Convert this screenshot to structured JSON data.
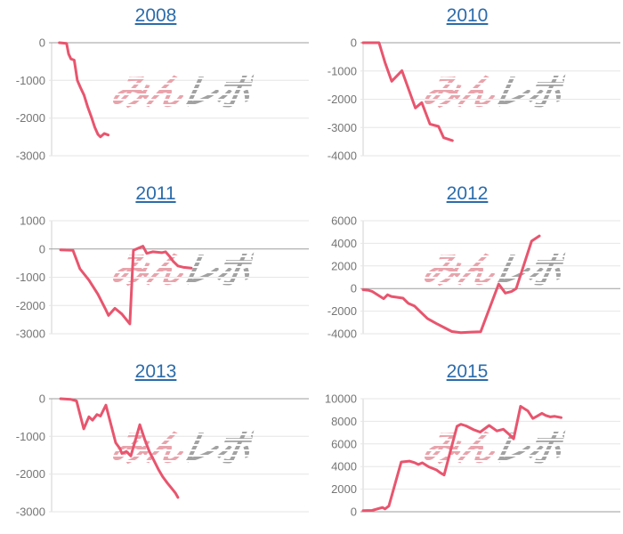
{
  "watermark": {
    "pink": "みん",
    "gray": "レポ"
  },
  "colors": {
    "line": "#e8556e",
    "title_link": "#2b6cab",
    "axis_label": "#757575",
    "gridline": "#e6e6e6",
    "zero_line": "#9e9e9e",
    "axis_line": "#d2d2d2",
    "background": "#ffffff",
    "watermark_pink": "#e9a3ab",
    "watermark_gray": "#a2a2a2"
  },
  "chart_data": [
    {
      "type": "line",
      "title": "2008",
      "ylim": [
        -3000,
        0
      ],
      "yticks": [
        0,
        -1000,
        -2000,
        -3000
      ],
      "grid": true,
      "legend": "none",
      "x_unit": "fraction-of-plot-width",
      "series": [
        {
          "name": "2008",
          "points": [
            [
              0.03,
              0
            ],
            [
              0.058,
              -20
            ],
            [
              0.066,
              -300
            ],
            [
              0.075,
              -430
            ],
            [
              0.088,
              -460
            ],
            [
              0.1,
              -1000
            ],
            [
              0.112,
              -1190
            ],
            [
              0.126,
              -1390
            ],
            [
              0.14,
              -1700
            ],
            [
              0.155,
              -1980
            ],
            [
              0.168,
              -2250
            ],
            [
              0.18,
              -2430
            ],
            [
              0.19,
              -2500
            ],
            [
              0.205,
              -2410
            ],
            [
              0.22,
              -2450
            ]
          ]
        }
      ]
    },
    {
      "type": "line",
      "title": "2010",
      "ylim": [
        -4000,
        0
      ],
      "yticks": [
        0,
        -1000,
        -2000,
        -3000,
        -4000
      ],
      "grid": true,
      "legend": "none",
      "x_unit": "fraction-of-plot-width",
      "series": [
        {
          "name": "2010",
          "points": [
            [
              0.0,
              0
            ],
            [
              0.062,
              0
            ],
            [
              0.085,
              -700
            ],
            [
              0.111,
              -1365
            ],
            [
              0.151,
              -990
            ],
            [
              0.203,
              -2310
            ],
            [
              0.228,
              -2120
            ],
            [
              0.26,
              -2880
            ],
            [
              0.293,
              -2960
            ],
            [
              0.313,
              -3360
            ],
            [
              0.347,
              -3460
            ]
          ]
        }
      ]
    },
    {
      "type": "line",
      "title": "2011",
      "ylim": [
        -3000,
        1000
      ],
      "yticks": [
        1000,
        0,
        -1000,
        -2000,
        -3000
      ],
      "grid": true,
      "legend": "none",
      "x_unit": "fraction-of-plot-width",
      "series": [
        {
          "name": "2011",
          "points": [
            [
              0.035,
              -30
            ],
            [
              0.083,
              -50
            ],
            [
              0.11,
              -700
            ],
            [
              0.145,
              -1100
            ],
            [
              0.18,
              -1600
            ],
            [
              0.208,
              -2100
            ],
            [
              0.221,
              -2350
            ],
            [
              0.246,
              -2100
            ],
            [
              0.273,
              -2300
            ],
            [
              0.304,
              -2650
            ],
            [
              0.318,
              -50
            ],
            [
              0.355,
              100
            ],
            [
              0.37,
              -155
            ],
            [
              0.393,
              -100
            ],
            [
              0.428,
              -130
            ],
            [
              0.443,
              -100
            ],
            [
              0.459,
              -265
            ],
            [
              0.472,
              -430
            ],
            [
              0.491,
              -600
            ],
            [
              0.514,
              -650
            ],
            [
              0.543,
              -680
            ]
          ]
        }
      ]
    },
    {
      "type": "line",
      "title": "2012",
      "ylim": [
        -4000,
        6000
      ],
      "yticks": [
        6000,
        4000,
        2000,
        0,
        -2000,
        -4000
      ],
      "grid": true,
      "legend": "none",
      "x_unit": "fraction-of-plot-width",
      "series": [
        {
          "name": "2012",
          "points": [
            [
              0.0,
              -100
            ],
            [
              0.02,
              -150
            ],
            [
              0.035,
              -250
            ],
            [
              0.08,
              -900
            ],
            [
              0.095,
              -550
            ],
            [
              0.11,
              -700
            ],
            [
              0.14,
              -800
            ],
            [
              0.155,
              -850
            ],
            [
              0.175,
              -1300
            ],
            [
              0.2,
              -1550
            ],
            [
              0.225,
              -2100
            ],
            [
              0.25,
              -2650
            ],
            [
              0.285,
              -3100
            ],
            [
              0.315,
              -3450
            ],
            [
              0.345,
              -3800
            ],
            [
              0.38,
              -3900
            ],
            [
              0.42,
              -3850
            ],
            [
              0.457,
              -3820
            ],
            [
              0.527,
              400
            ],
            [
              0.553,
              -400
            ],
            [
              0.578,
              -250
            ],
            [
              0.595,
              0
            ],
            [
              0.655,
              4200
            ],
            [
              0.685,
              4650
            ]
          ]
        }
      ]
    },
    {
      "type": "line",
      "title": "2013",
      "ylim": [
        -3000,
        0
      ],
      "yticks": [
        0,
        -1000,
        -2000,
        -3000
      ],
      "grid": true,
      "legend": "none",
      "x_unit": "fraction-of-plot-width",
      "series": [
        {
          "name": "2013",
          "points": [
            [
              0.035,
              0
            ],
            [
              0.076,
              -20
            ],
            [
              0.097,
              -60
            ],
            [
              0.125,
              -800
            ],
            [
              0.145,
              -480
            ],
            [
              0.159,
              -570
            ],
            [
              0.176,
              -420
            ],
            [
              0.19,
              -460
            ],
            [
              0.211,
              -170
            ],
            [
              0.249,
              -1170
            ],
            [
              0.266,
              -1330
            ],
            [
              0.273,
              -1450
            ],
            [
              0.291,
              -1400
            ],
            [
              0.308,
              -1520
            ],
            [
              0.343,
              -690
            ],
            [
              0.363,
              -1100
            ],
            [
              0.38,
              -1400
            ],
            [
              0.398,
              -1640
            ],
            [
              0.415,
              -1870
            ],
            [
              0.432,
              -2070
            ],
            [
              0.45,
              -2240
            ],
            [
              0.467,
              -2380
            ],
            [
              0.481,
              -2500
            ],
            [
              0.491,
              -2620
            ]
          ]
        }
      ]
    },
    {
      "type": "line",
      "title": "2015",
      "ylim": [
        0,
        10000
      ],
      "yticks": [
        10000,
        8000,
        6000,
        4000,
        2000,
        0
      ],
      "grid": true,
      "legend": "none",
      "x_unit": "fraction-of-plot-width",
      "series": [
        {
          "name": "2015",
          "points": [
            [
              0.0,
              100
            ],
            [
              0.035,
              120
            ],
            [
              0.075,
              380
            ],
            [
              0.085,
              250
            ],
            [
              0.1,
              500
            ],
            [
              0.148,
              4400
            ],
            [
              0.18,
              4480
            ],
            [
              0.2,
              4350
            ],
            [
              0.215,
              4180
            ],
            [
              0.23,
              4330
            ],
            [
              0.255,
              3980
            ],
            [
              0.285,
              3700
            ],
            [
              0.3,
              3450
            ],
            [
              0.315,
              3250
            ],
            [
              0.365,
              7560
            ],
            [
              0.38,
              7740
            ],
            [
              0.4,
              7600
            ],
            [
              0.43,
              7250
            ],
            [
              0.455,
              7050
            ],
            [
              0.49,
              7640
            ],
            [
              0.52,
              7150
            ],
            [
              0.545,
              7300
            ],
            [
              0.57,
              6800
            ],
            [
              0.585,
              6450
            ],
            [
              0.612,
              9330
            ],
            [
              0.625,
              9140
            ],
            [
              0.64,
              8930
            ],
            [
              0.66,
              8250
            ],
            [
              0.675,
              8440
            ],
            [
              0.695,
              8710
            ],
            [
              0.71,
              8520
            ],
            [
              0.728,
              8390
            ],
            [
              0.745,
              8440
            ],
            [
              0.77,
              8330
            ]
          ]
        }
      ]
    }
  ]
}
